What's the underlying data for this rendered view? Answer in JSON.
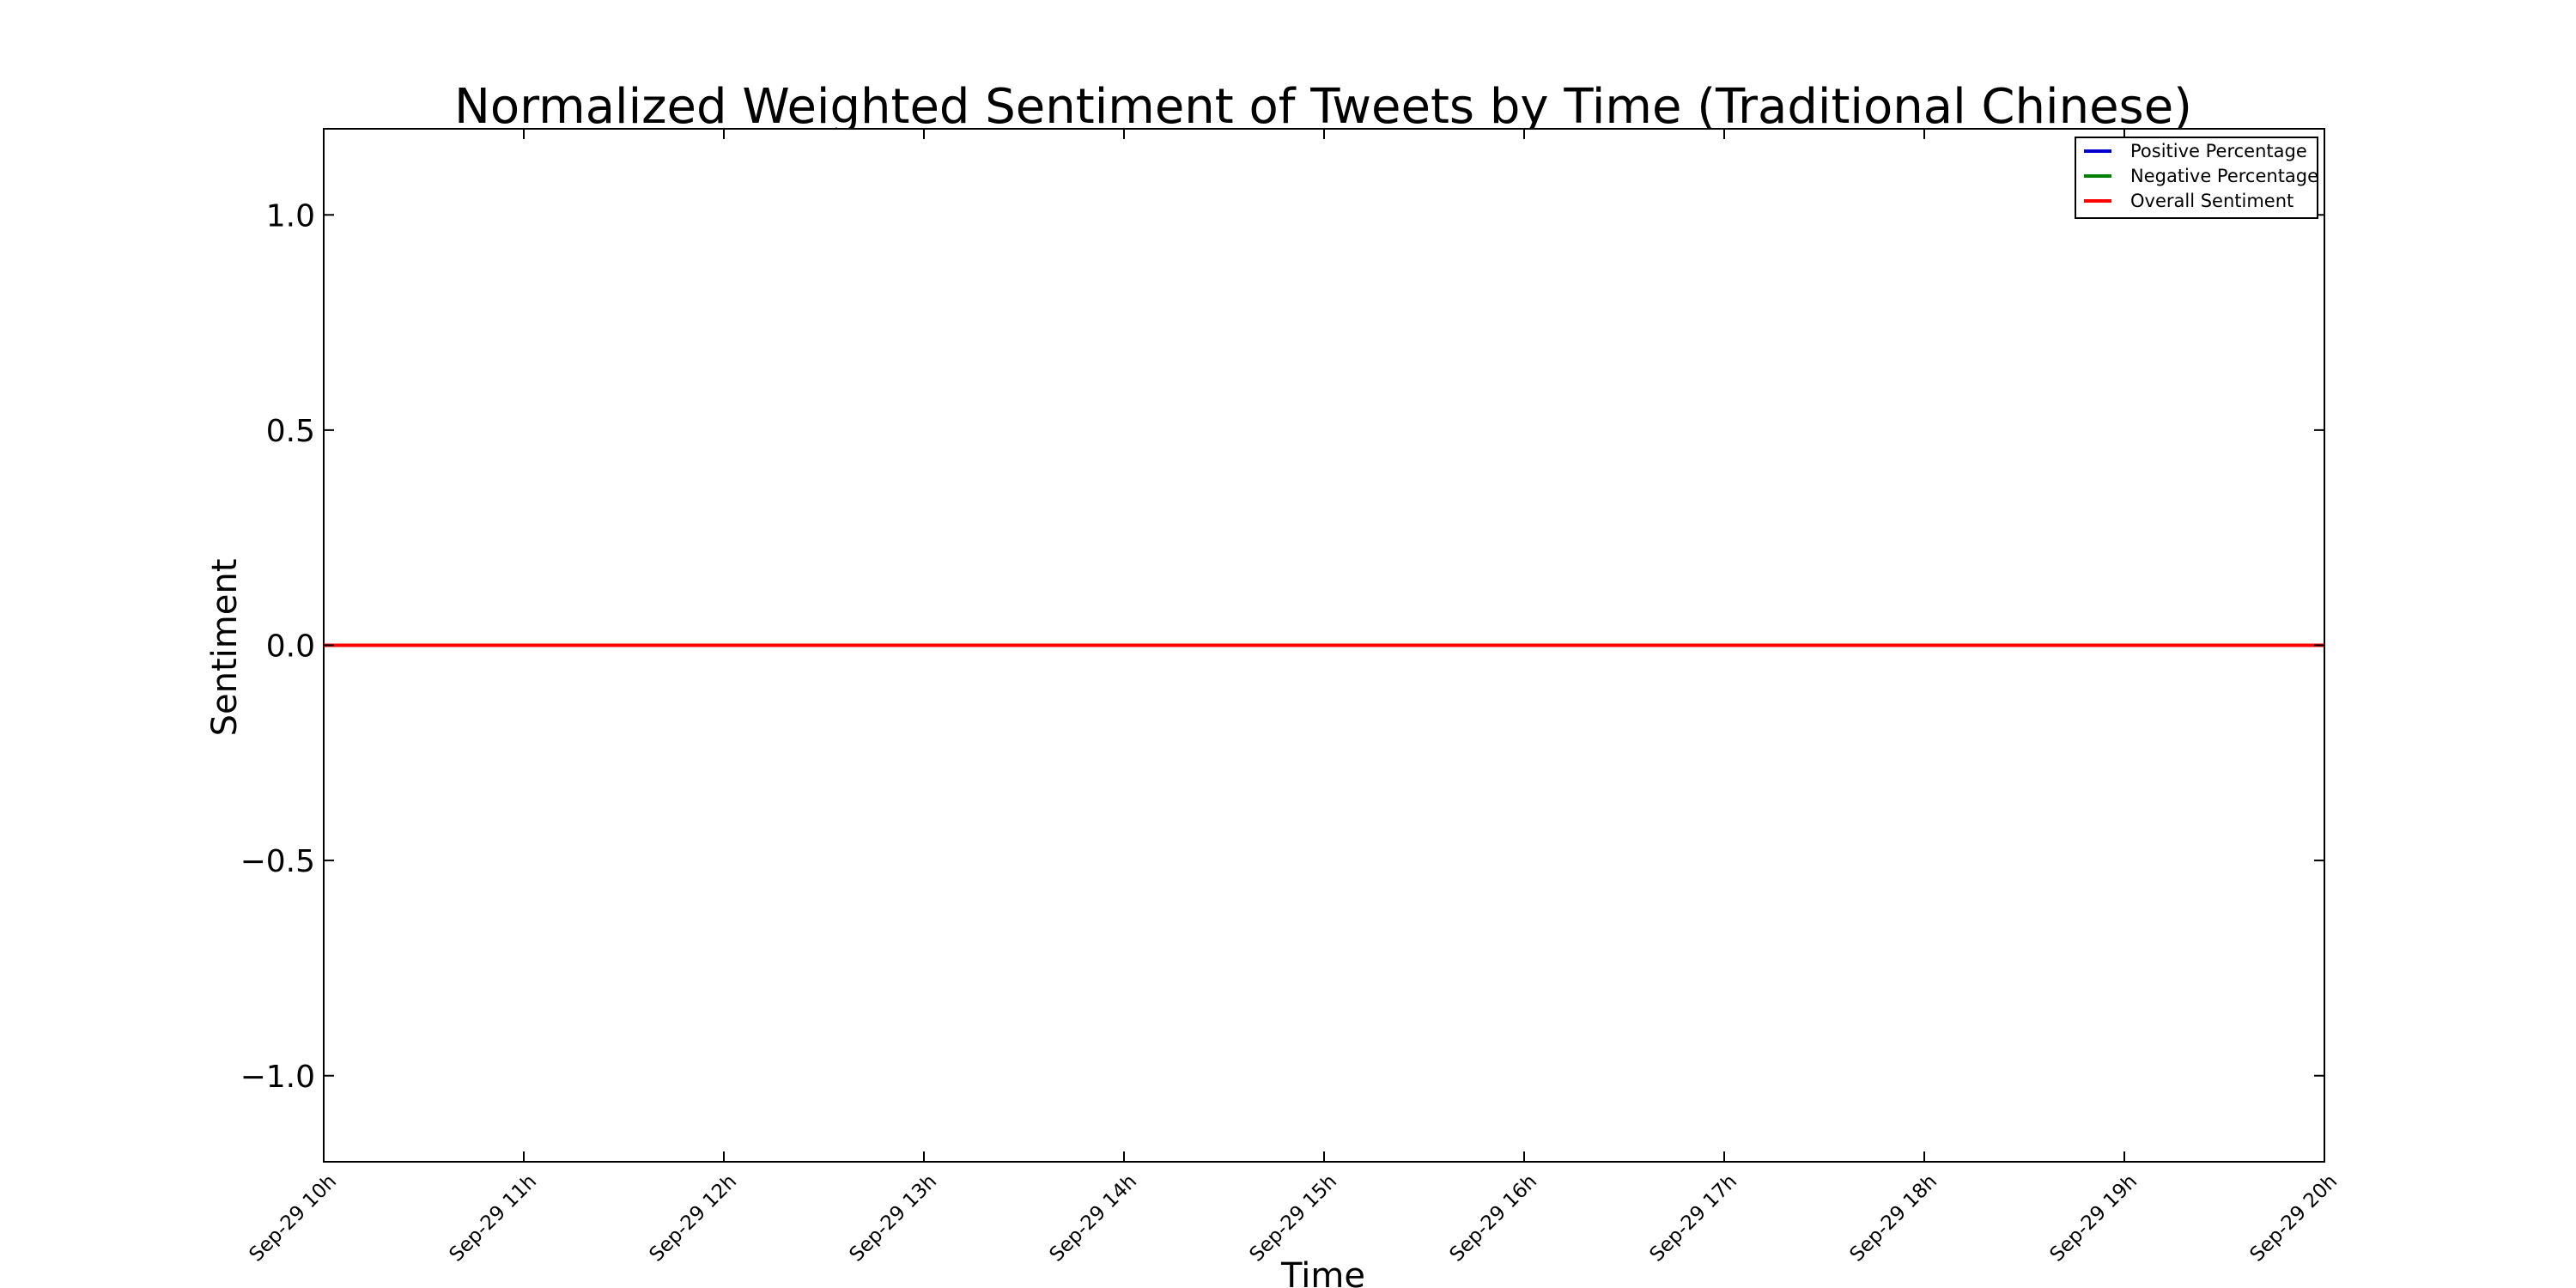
{
  "chart_data": {
    "type": "line",
    "title": "Normalized Weighted Sentiment of Tweets by Time (Traditional Chinese)",
    "xlabel": "Time",
    "ylabel": "Sentiment",
    "x": [
      "Sep-29 10h",
      "Sep-29 11h",
      "Sep-29 12h",
      "Sep-29 13h",
      "Sep-29 14h",
      "Sep-29 15h",
      "Sep-29 16h",
      "Sep-29 17h",
      "Sep-29 18h",
      "Sep-29 19h",
      "Sep-29 20h"
    ],
    "xticks": [
      "Sep-29 10h",
      "Sep-29 11h",
      "Sep-29 12h",
      "Sep-29 13h",
      "Sep-29 14h",
      "Sep-29 15h",
      "Sep-29 16h",
      "Sep-29 17h",
      "Sep-29 18h",
      "Sep-29 19h",
      "Sep-29 20h"
    ],
    "ylim": [
      -1.2,
      1.2
    ],
    "yticks": [
      1.0,
      0.5,
      0.0,
      -0.5,
      -1.0
    ],
    "ytick_labels": [
      "1.0",
      "0.5",
      "0.0",
      "−0.5",
      "−1.0"
    ],
    "grid": false,
    "legend_position": "top-right",
    "series": [
      {
        "name": "Positive Percentage",
        "color": "#0000cc",
        "values": [
          0,
          0,
          0,
          0,
          0,
          0,
          0,
          0,
          0,
          0,
          0
        ]
      },
      {
        "name": "Negative Percentage",
        "color": "#008000",
        "values": [
          0,
          0,
          0,
          0,
          0,
          0,
          0,
          0,
          0,
          0,
          0
        ]
      },
      {
        "name": "Overall Sentiment",
        "color": "#ff0000",
        "values": [
          0,
          0,
          0,
          0,
          0,
          0,
          0,
          0,
          0,
          0,
          0
        ]
      }
    ]
  }
}
